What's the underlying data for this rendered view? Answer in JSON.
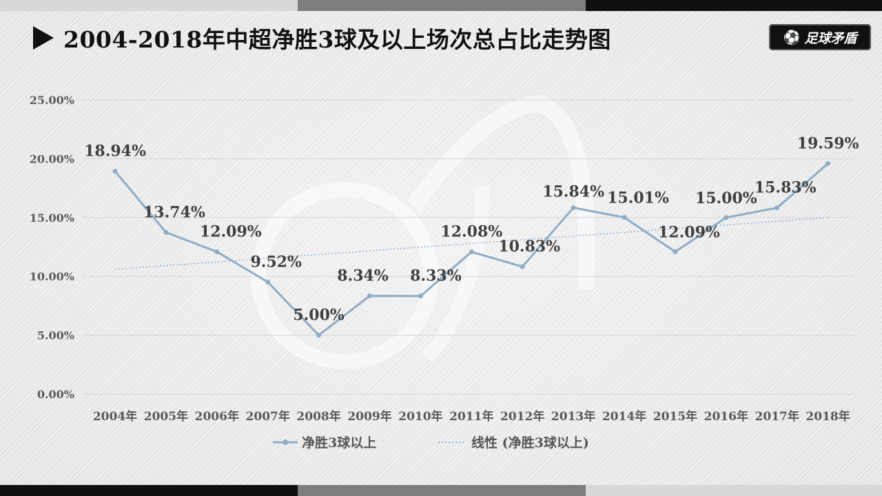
{
  "title": "2004-2018年中超净胜3球及以上场次总占比走势图",
  "logo": {
    "text": "足球矛盾",
    "icon": "soccer-ball-icon"
  },
  "colors": {
    "line": "#8eacc6",
    "trend": "#8eb0d4",
    "grid": "#d6d6d6",
    "title": "#111111"
  },
  "chart_data": {
    "type": "line",
    "title": "2004-2018年中超净胜3球及以上场次总占比走势图",
    "categories": [
      "2004年",
      "2005年",
      "2006年",
      "2007年",
      "2008年",
      "2009年",
      "2010年",
      "2011年",
      "2012年",
      "2013年",
      "2014年",
      "2015年",
      "2016年",
      "2017年",
      "2018年"
    ],
    "series": [
      {
        "name": "净胜3球以上",
        "values": [
          18.94,
          13.74,
          12.09,
          9.52,
          5.0,
          8.34,
          8.33,
          12.08,
          10.83,
          15.84,
          15.01,
          12.09,
          15.0,
          15.83,
          19.59
        ],
        "labels": [
          "18.94%",
          "13.74%",
          "12.09%",
          "9.52%",
          "5.00%",
          "8.34%",
          "8.33%",
          "12.08%",
          "10.83%",
          "15.84%",
          "15.01%",
          "12.09%",
          "15.00%",
          "15.83%",
          "19.59%"
        ]
      }
    ],
    "trendline": {
      "name": "线性 (净胜3球以上)",
      "type": "linear",
      "start": 10.6,
      "end": 15.0
    },
    "yticks": [
      "0.00%",
      "5.00%",
      "10.00%",
      "15.00%",
      "20.00%",
      "25.00%"
    ],
    "ylim": [
      0,
      25
    ],
    "grid": true,
    "legend_position": "bottom"
  }
}
